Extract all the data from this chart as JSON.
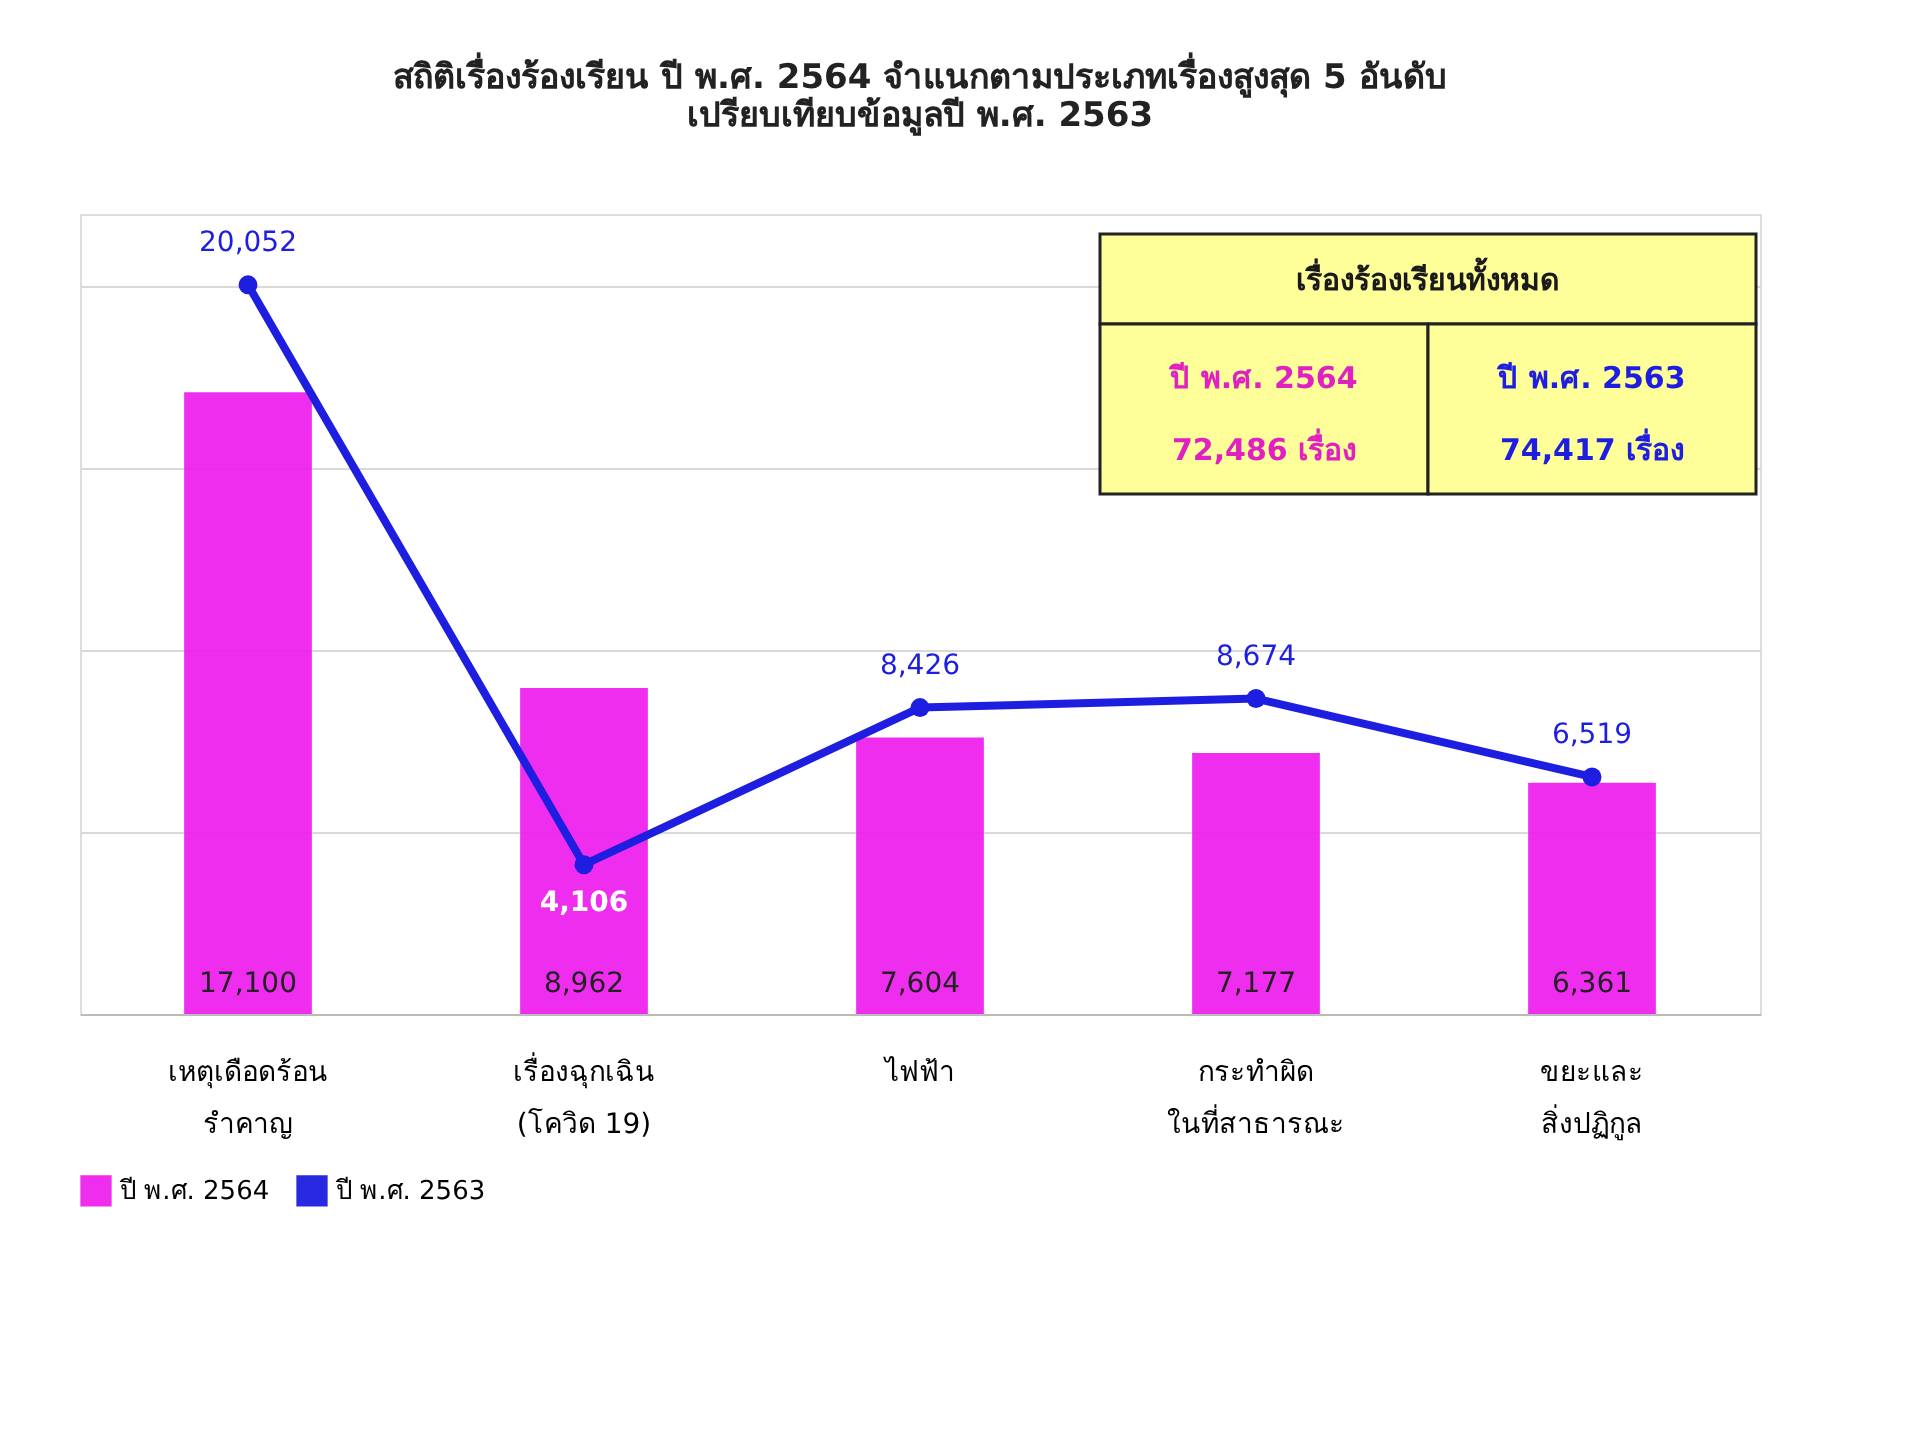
{
  "chart_data": {
    "type": "bar",
    "title": [
      "สถิติเรื่องร้องเรียน ปี พ.ศ. 2564 จำแนกตามประเภทเรื่องสูงสุด 5 อันดับ",
      "เปรียบเทียบข้อมูลปี พ.ศ. 2563"
    ],
    "categories": [
      "เหตุเดือดร้อน\nรำคาญ",
      "เรื่องฉุกเฉิน\n(โควิด 19)",
      "ไฟฟ้า",
      "กระทำผิด\nในที่สาธารณะ",
      "ขยะและ\nสิ่งปฏิกูล"
    ],
    "series": [
      {
        "name": "ปี พ.ศ. 2564",
        "color": "#ee22ee",
        "values": [
          17100,
          8962,
          7604,
          7177,
          6361
        ],
        "value_labels": [
          "17,100",
          "8,962",
          "7,604",
          "7,177",
          "6,361"
        ]
      },
      {
        "name": "ปี พ.ศ. 2563",
        "type": "line",
        "color": "#1e1ee0",
        "marker": "circle",
        "values": [
          20052,
          4106,
          8426,
          8674,
          6519
        ],
        "value_labels": [
          "20,052",
          "4,106",
          "8,426",
          "8,674",
          "6,519"
        ]
      }
    ],
    "tick_labels": "x",
    "grid": "y",
    "legend": "bottom",
    "annotations": [
      "เรื่องร้องเรียนทั้งหมด",
      "ปี พ.ศ. 2564",
      "72,486  เรื่อง",
      "ปี พ.ศ. 2563",
      "74,417  เรื่อง"
    ]
  }
}
